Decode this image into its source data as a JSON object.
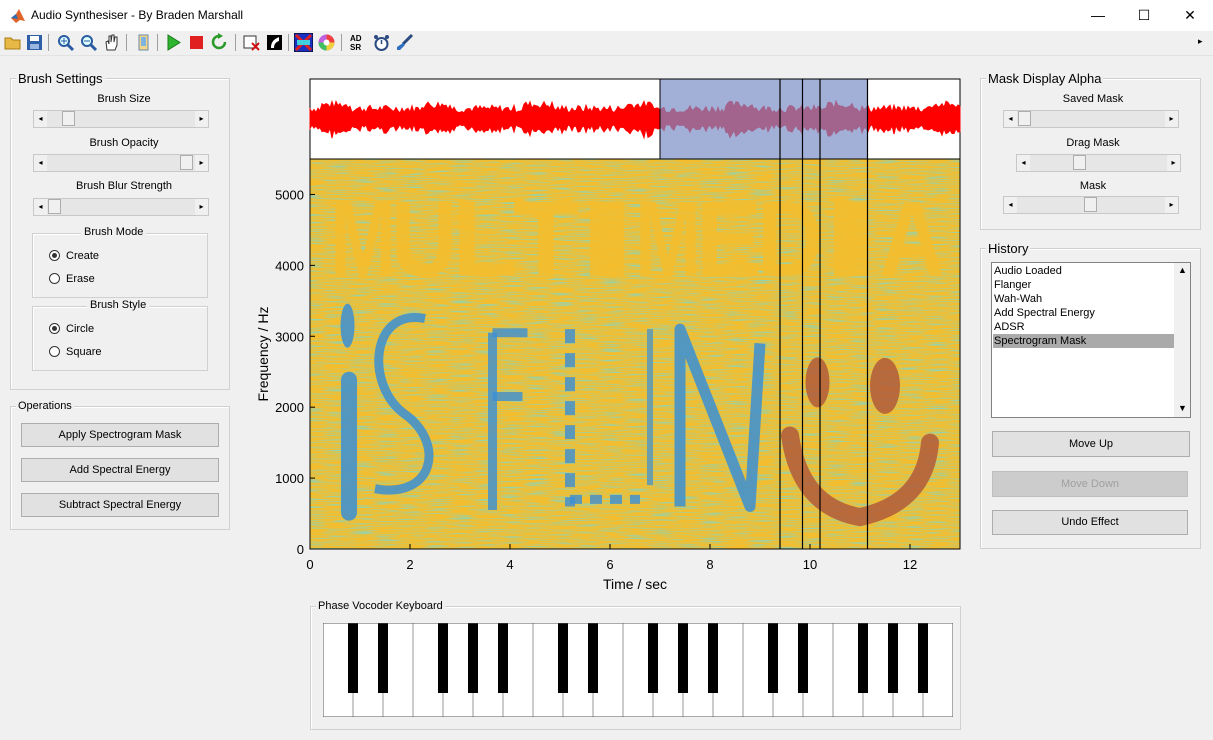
{
  "window": {
    "title": "Audio Synthesiser - By Braden Marshall",
    "minimize": "—",
    "maximize": "☐",
    "close": "✕"
  },
  "toolbar": {
    "icons": [
      "open-icon",
      "save-icon",
      "zoom-in-icon",
      "zoom-out-icon",
      "pan-icon",
      "device-icon",
      "play-icon",
      "stop-icon",
      "refresh-icon",
      "clear-mask-icon",
      "invert-icon",
      "spectrogram-icon",
      "color-wheel-icon",
      "adsr-icon",
      "effects-icon",
      "brush-icon"
    ],
    "more": "▸"
  },
  "brush_settings": {
    "title": "Brush Settings",
    "size_label": "Brush Size",
    "opacity_label": "Brush Opacity",
    "blur_label": "Brush Blur Strength",
    "size_value": 0.1,
    "opacity_value": 0.95,
    "blur_value": 0.05,
    "mode_title": "Brush Mode",
    "mode_options": [
      "Create",
      "Erase"
    ],
    "mode_selected": "Create",
    "style_title": "Brush Style",
    "style_options": [
      "Circle",
      "Square"
    ],
    "style_selected": "Circle"
  },
  "operations": {
    "title": "Operations",
    "buttons": [
      "Apply Spectrogram Mask",
      "Add Spectral Energy",
      "Subtract Spectral Energy"
    ]
  },
  "mask_alpha": {
    "title": "Mask Display Alpha",
    "saved_label": "Saved Mask",
    "drag_label": "Drag Mask",
    "mask_label": "Mask",
    "saved_value": 0.0,
    "drag_value": 0.45,
    "mask_value": 0.5
  },
  "history": {
    "title": "History",
    "items": [
      "Audio Loaded",
      "Flanger",
      "Wah-Wah",
      "Add Spectral Energy",
      "ADSR",
      "Spectrogram Mask"
    ],
    "selected_index": 5,
    "move_up": "Move Up",
    "move_down": "Move Down",
    "undo": "Undo Effect"
  },
  "chart_data": {
    "type": "heatmap",
    "xlabel": "Time / sec",
    "ylabel": "Frequency / Hz",
    "xlim": [
      0,
      13
    ],
    "ylim": [
      0,
      5500
    ],
    "xticks": [
      0,
      2,
      4,
      6,
      8,
      10,
      12
    ],
    "yticks": [
      0,
      1000,
      2000,
      3000,
      4000,
      5000
    ],
    "selection_range": [
      7.0,
      11.15
    ],
    "markers": [
      9.4,
      9.85,
      10.2,
      11.15
    ],
    "spectrogram_text": [
      "MULTIMEDIA",
      "IS FUN"
    ],
    "colors": {
      "background": "#f3bd2e",
      "low": "#3b8fd4",
      "mid": "#2bb6b0",
      "mask": "#b05a3a",
      "waveform": "#ff0000",
      "selection": "#9aaed6"
    }
  },
  "keyboard": {
    "title": "Phase Vocoder Keyboard",
    "white_keys": 21
  }
}
